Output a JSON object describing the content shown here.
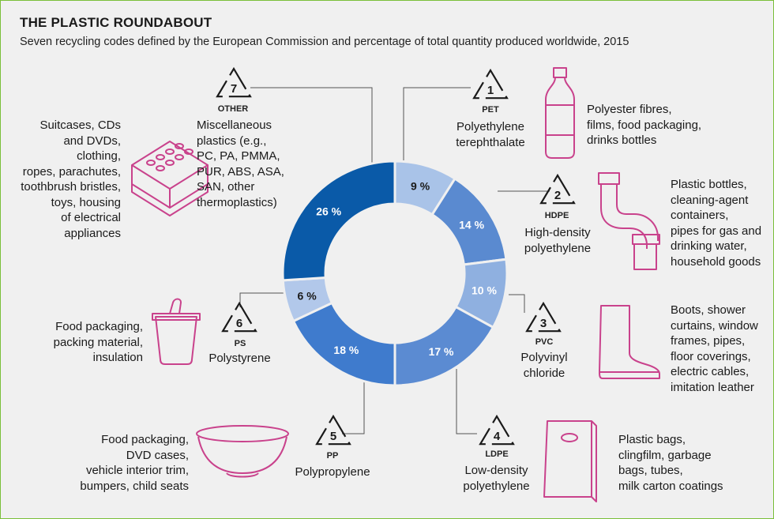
{
  "title": "THE PLASTIC ROUNDABOUT",
  "subtitle": "Seven recycling codes defined by the European Commission and percentage of total quantity produced worldwide, 2015",
  "colors": {
    "seg1": "#a9c3e8",
    "seg2": "#5a8ad0",
    "seg3": "#8fb0e0",
    "seg4": "#5b8bd2",
    "seg5": "#3f7bcd",
    "seg6": "#b2c8ea",
    "seg7": "#0a5aa8",
    "icon": "#c9428c",
    "leader": "#555555"
  },
  "chart_data": {
    "type": "pie",
    "categories": [
      "PET",
      "HDPE",
      "PVC",
      "LDPE",
      "PP",
      "PS",
      "OTHER"
    ],
    "values": [
      9,
      14,
      10,
      17,
      18,
      6,
      26
    ],
    "labels": [
      "9 %",
      "14 %",
      "10 %",
      "17 %",
      "18 %",
      "6 %",
      "26 %"
    ]
  },
  "codes": [
    {
      "num": "1",
      "abbr": "PET",
      "name_lines": [
        "Polyethylene",
        "terephthalate"
      ],
      "uses": [
        "Polyester fibres,",
        "films, food packaging,",
        "drinks bottles"
      ],
      "icon": "bottle-icon"
    },
    {
      "num": "2",
      "abbr": "HDPE",
      "name_lines": [
        "High-density",
        "polyethylene"
      ],
      "uses": [
        "Plastic bottles,",
        "cleaning-agent",
        "containers,",
        "pipes for gas and",
        "drinking water,",
        "household goods"
      ],
      "icon": "pipe-icon"
    },
    {
      "num": "3",
      "abbr": "PVC",
      "name_lines": [
        "Polyvinyl",
        "chloride"
      ],
      "uses": [
        "Boots, shower",
        "curtains, window",
        "frames, pipes,",
        "floor coverings,",
        "electric cables,",
        "imitation leather"
      ],
      "icon": "boot-icon"
    },
    {
      "num": "4",
      "abbr": "LDPE",
      "name_lines": [
        "Low-density",
        "polyethylene"
      ],
      "uses": [
        "Plastic bags,",
        "clingfilm, garbage",
        "bags, tubes,",
        "milk carton coatings"
      ],
      "icon": "bag-icon"
    },
    {
      "num": "5",
      "abbr": "PP",
      "name_lines": [
        "Polypropylene"
      ],
      "uses": [
        "Food packaging,",
        "DVD cases,",
        "vehicle interior trim,",
        "bumpers, child seats"
      ],
      "icon": "bowl-icon"
    },
    {
      "num": "6",
      "abbr": "PS",
      "name_lines": [
        "Polystyrene"
      ],
      "uses": [
        "Food packaging,",
        "packing material,",
        "insulation"
      ],
      "icon": "yogurt-cup-icon"
    },
    {
      "num": "7",
      "abbr": "OTHER",
      "name_lines": [
        "Miscellaneous",
        "plastics (e.g.,",
        "PC, PA, PMMA,",
        "PUR, ABS, ASA,",
        "SAN, other",
        "thermoplastics)"
      ],
      "uses": [
        "Suitcases, CDs",
        "and DVDs, clothing,",
        "ropes, parachutes,",
        "toothbrush bristles,",
        "toys, housing",
        "of electrical",
        "appliances"
      ],
      "icon": "lego-brick-icon"
    }
  ]
}
